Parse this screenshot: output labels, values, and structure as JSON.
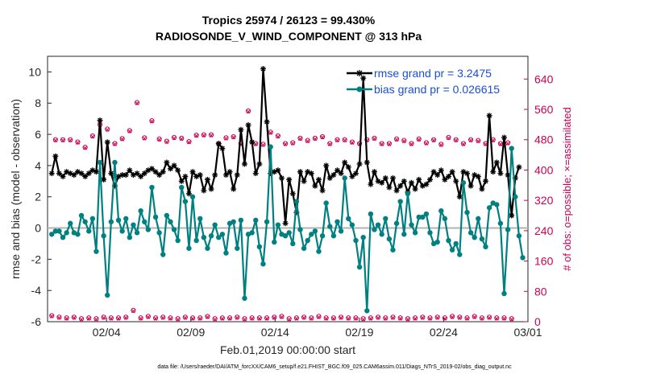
{
  "chart_data": {
    "type": "line",
    "title_line1": "Tropics 25974 / 26123 = 99.430%",
    "title_line2": "RADIOSONDE_V_WIND_COMPONENT @ 313 hPa",
    "xlabel": "Feb.01,2019 00:00:00 start",
    "ylabel": "rmse and bias (model - observation)",
    "y2label": "# of obs: o=possible; ×=assimilated",
    "footer": "data file: /Users/raeder/DAI/ATM_forcXX/CAM6_setup/f.e21.FHIST_BGC.f09_025.CAM6assim.011/Diags_NTrS_2019-02/obs_diag_output.nc",
    "x_ticks": [
      3.5,
      8.5,
      13.5,
      18.5,
      23.5,
      28.5
    ],
    "x_tick_labels": [
      "02/04",
      "02/09",
      "02/14",
      "02/19",
      "02/24",
      "03/01"
    ],
    "xlim": [
      0,
      28.5
    ],
    "ylim": [
      -6,
      11
    ],
    "y_ticks": [
      -6,
      -4,
      -2,
      0,
      2,
      4,
      6,
      8,
      10
    ],
    "y2lim": [
      0,
      700
    ],
    "y2_ticks": [
      0,
      80,
      160,
      240,
      320,
      400,
      480,
      560,
      640
    ],
    "grid": false,
    "legend_position": "top-right",
    "series": [
      {
        "name": "rmse grand pr = 3.2475",
        "color": "#000000",
        "marker": "asterisk",
        "values": [
          3.5,
          4.6,
          3.5,
          3.3,
          3.6,
          3.5,
          3.4,
          3.6,
          3.5,
          3.3,
          3.5,
          3.7,
          3.6,
          6.9,
          3.1,
          5.5,
          3.5,
          2.7,
          3.3,
          3.4,
          3.4,
          3.7,
          3.4,
          3.5,
          3.3,
          3.5,
          3.7,
          3.8,
          3.6,
          3.4,
          3.6,
          4.2,
          3.8,
          4.0,
          3.7,
          3.0,
          3.3,
          2.2,
          3.6,
          3.3,
          3.4,
          2.4,
          3.1,
          2.5,
          3.4,
          5.4,
          5.1,
          3.4,
          3.6,
          2.5,
          3.4,
          6.3,
          4.1,
          6.6,
          5.5,
          3.5,
          4.1,
          10.2,
          6.8,
          3.5,
          3.6,
          3.7,
          3.2,
          0.3,
          3.1,
          2.2,
          1.0,
          3.6,
          3.0,
          3.6,
          3.5,
          2.7,
          3.1,
          2.4,
          4.0,
          3.2,
          3.4,
          3.7,
          3.5,
          4.2,
          3.9,
          3.3,
          3.5,
          4.1,
          9.6,
          4.2,
          2.8,
          3.6,
          3.0,
          2.9,
          3.2,
          2.6,
          3.2,
          2.4,
          2.7,
          3.0,
          2.3,
          2.9,
          2.5,
          3.1,
          2.7,
          2.8,
          3.1,
          3.6,
          3.4,
          3.7,
          3.1,
          3.3,
          3.6,
          3.0,
          2.0,
          3.6,
          3.5,
          2.7,
          3.4,
          3.3,
          2.5,
          3.0,
          7.2,
          3.6,
          4.2,
          3.5,
          5.8,
          3.4,
          0.8,
          3.2,
          3.9
        ]
      },
      {
        "name": "bias grand pr = 0.026615",
        "color": "#008080",
        "marker": "circle",
        "values": [
          -0.4,
          -0.2,
          -0.2,
          -0.6,
          -0.3,
          0.3,
          -0.3,
          -0.4,
          0.8,
          0.4,
          -0.2,
          0.6,
          -1.5,
          4.2,
          -0.5,
          -4.3,
          0.4,
          4.2,
          0.5,
          -0.2,
          0.6,
          -0.6,
          0.2,
          -0.3,
          1.1,
          0.4,
          -0.1,
          2.6,
          0.7,
          -0.3,
          -1.7,
          0.8,
          0.4,
          -0.1,
          -0.8,
          2.6,
          1.7,
          -1.3,
          2.0,
          -0.8,
          0.6,
          -0.6,
          -1.3,
          -0.5,
          0.2,
          -0.6,
          -0.4,
          -1.6,
          0.3,
          0.4,
          -1.3,
          0.5,
          -4.5,
          -0.4,
          -0.3,
          0.5,
          -1.2,
          -2.3,
          0.4,
          5.2,
          -0.9,
          0.2,
          -0.4,
          -0.5,
          -0.3,
          -1.0,
          1.7,
          -0.1,
          -1.3,
          -0.8,
          -0.4,
          -0.2,
          -1.5,
          -0.5,
          1.6,
          0.1,
          -0.5,
          0.4,
          -0.2,
          3.2,
          0.6,
          0.2,
          -0.8,
          -2.5,
          -0.6,
          -5.3,
          0.9,
          -0.1,
          0.2,
          -0.4,
          0.6,
          -0.7,
          -1.4,
          0.3,
          1.7,
          -0.4,
          2.2,
          0.2,
          -0.3,
          0.7,
          0.7,
          0.9,
          -0.3,
          -1.0,
          -0.9,
          1.1,
          0.6,
          -0.8,
          -1.4,
          -1.0,
          -1.7,
          2.9,
          1.0,
          -0.3,
          -0.6,
          0.6,
          -0.7,
          -1.2,
          1.3,
          1.6,
          1.5,
          0.3,
          -4.2,
          -0.1,
          5.1,
          2.0,
          -0.5,
          -1.9
        ]
      },
      {
        "name": "possible obs",
        "color": "#cc0052",
        "marker": "ring",
        "axis": "right",
        "values": [
          16,
          480,
          12,
          480,
          10,
          480,
          12,
          474,
          8,
          460,
          10,
          490,
          8,
          520,
          12,
          508,
          10,
          470,
          10,
          483,
          12,
          504,
          30,
          578,
          10,
          485,
          14,
          530,
          10,
          482,
          12,
          476,
          10,
          486,
          8,
          484,
          12,
          475,
          10,
          492,
          10,
          493,
          14,
          493,
          8,
          470,
          10,
          485,
          10,
          488,
          12,
          470,
          8,
          556,
          10,
          470,
          10,
          468,
          10,
          500,
          12,
          490,
          14,
          470,
          8,
          472,
          10,
          484,
          12,
          478,
          10,
          484,
          14,
          488,
          10,
          470,
          10,
          480,
          12,
          480,
          10,
          474,
          10,
          470,
          8,
          480,
          10,
          484,
          12,
          470,
          10,
          470,
          12,
          482,
          10,
          478,
          8,
          470,
          10,
          482,
          12,
          472,
          10,
          480,
          12,
          468,
          10,
          486,
          14,
          480,
          12,
          470,
          10,
          480,
          14,
          478,
          10,
          470,
          12,
          480,
          10,
          470,
          10,
          472,
          8
        ]
      },
      {
        "name": "assimilated obs",
        "color": "#cc0052",
        "marker": "x",
        "axis": "right",
        "values": [
          14,
          478,
          10,
          478,
          8,
          478,
          10,
          472,
          6,
          458,
          8,
          488,
          6,
          518,
          10,
          506,
          8,
          468,
          8,
          481,
          10,
          502,
          28,
          576,
          8,
          483,
          12,
          528,
          8,
          480,
          10,
          474,
          8,
          484,
          6,
          482,
          10,
          473,
          8,
          490,
          8,
          491,
          12,
          491,
          6,
          468,
          8,
          483,
          8,
          486,
          10,
          468,
          6,
          554,
          8,
          468,
          8,
          466,
          8,
          498,
          10,
          488,
          12,
          468,
          6,
          470,
          8,
          482,
          10,
          476,
          8,
          482,
          12,
          486,
          8,
          468,
          8,
          478,
          10,
          478,
          8,
          472,
          8,
          468,
          6,
          478,
          8,
          482,
          10,
          468,
          8,
          468,
          10,
          480,
          8,
          476,
          6,
          468,
          8,
          480,
          10,
          470,
          8,
          478,
          10,
          466,
          8,
          484,
          12,
          478,
          10,
          468,
          8,
          478,
          12,
          476,
          8,
          468,
          10,
          478,
          8,
          468,
          8,
          470,
          6
        ]
      }
    ]
  }
}
